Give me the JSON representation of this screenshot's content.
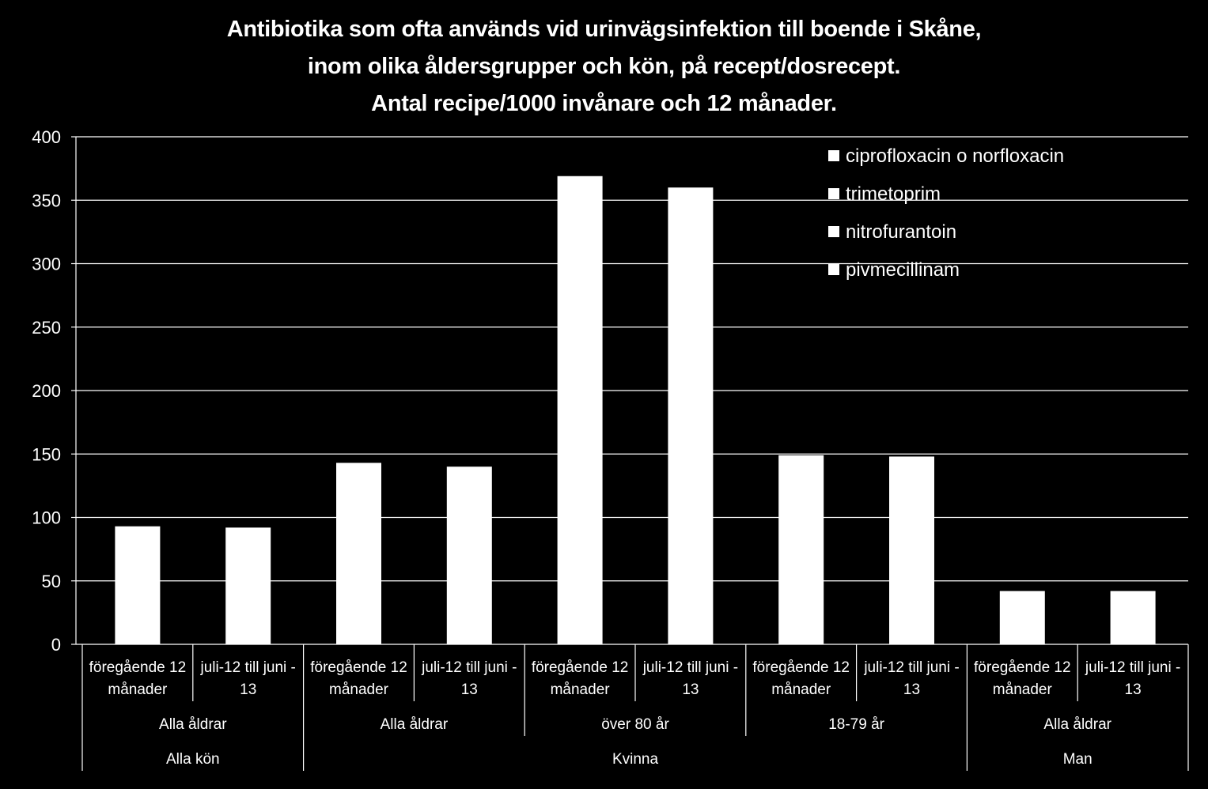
{
  "chart_data": {
    "type": "bar",
    "title_lines": [
      "Antibiotika som ofta används vid urinvägsinfektion till boende i Skåne,",
      "inom olika åldersgrupper och kön, på recept/dosrecept.",
      "Antal recipe/1000 invånare och 12 månader."
    ],
    "ylim": [
      0,
      400
    ],
    "yticks": [
      0,
      50,
      100,
      150,
      200,
      250,
      300,
      350,
      400
    ],
    "grid": true,
    "legend_position": "top-right",
    "legend": [
      "ciprofloxacin o  norfloxacin",
      "trimetoprim",
      "nitrofurantoin",
      "pivmecillinam"
    ],
    "categories": [
      {
        "period": [
          "föregående 12",
          "månader"
        ],
        "age": "Alla åldrar",
        "sex": "Alla kön"
      },
      {
        "period": [
          "juli-12 till juni -",
          "13"
        ],
        "age": "Alla åldrar",
        "sex": "Alla kön"
      },
      {
        "period": [
          "föregående 12",
          "månader"
        ],
        "age": "Alla åldrar",
        "sex": "Kvinna"
      },
      {
        "period": [
          "juli-12 till juni -",
          "13"
        ],
        "age": "Alla åldrar",
        "sex": "Kvinna"
      },
      {
        "period": [
          "föregående 12",
          "månader"
        ],
        "age": "över 80 år",
        "sex": "Kvinna"
      },
      {
        "period": [
          "juli-12 till juni -",
          "13"
        ],
        "age": "över 80 år",
        "sex": "Kvinna"
      },
      {
        "period": [
          "föregående 12",
          "månader"
        ],
        "age": "18-79 år",
        "sex": "Kvinna"
      },
      {
        "period": [
          "juli-12 till juni -",
          "13"
        ],
        "age": "18-79 år",
        "sex": "Kvinna"
      },
      {
        "period": [
          "föregående 12",
          "månader"
        ],
        "age": "Alla åldrar",
        "sex": "Man"
      },
      {
        "period": [
          "juli-12 till juni -",
          "13"
        ],
        "age": "Alla åldrar",
        "sex": "Man"
      }
    ],
    "age_groups": [
      {
        "label": "Alla åldrar",
        "span": 2
      },
      {
        "label": "Alla åldrar",
        "span": 2
      },
      {
        "label": "över 80 år",
        "span": 2
      },
      {
        "label": "18-79 år",
        "span": 2
      },
      {
        "label": "Alla åldrar",
        "span": 2
      }
    ],
    "sex_groups": [
      {
        "label": "Alla kön",
        "span": 2
      },
      {
        "label": "Kvinna",
        "span": 6
      },
      {
        "label": "Man",
        "span": 2
      }
    ],
    "values": [
      93,
      92,
      143,
      140,
      369,
      360,
      149,
      148,
      42,
      42
    ],
    "bar_color": "#ffffff",
    "background": "#000000"
  }
}
